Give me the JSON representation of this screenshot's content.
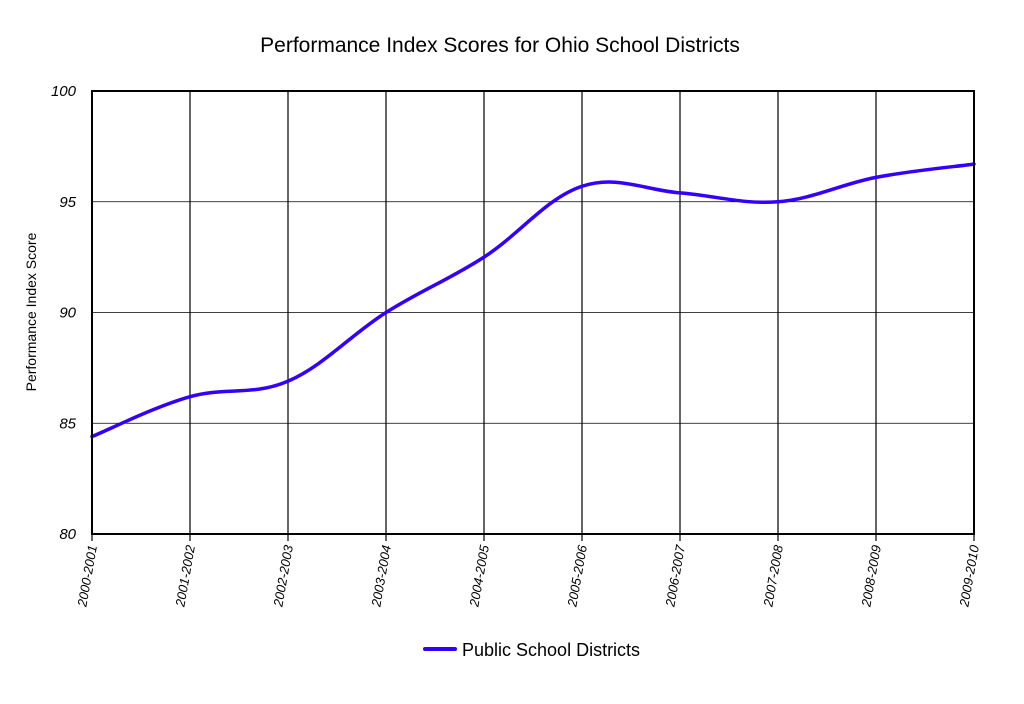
{
  "chart_data": {
    "type": "line",
    "title": "Performance Index Scores for Ohio School Districts",
    "xlabel": "",
    "ylabel": "Performance Index Score",
    "categories": [
      "2000-2001",
      "2001-2002",
      "2002-2003",
      "2003-2004",
      "2004-2005",
      "2005-2006",
      "2006-2007",
      "2007-2008",
      "2008-2009",
      "2009-2010"
    ],
    "series": [
      {
        "name": "Public School Districts",
        "color": "#3300ff",
        "values": [
          84.4,
          86.2,
          86.9,
          90.0,
          92.5,
          95.7,
          95.4,
          95.0,
          96.1,
          96.7
        ]
      }
    ],
    "ylim": [
      80,
      100
    ],
    "yticks": [
      "80",
      "85",
      "90",
      "95",
      "100"
    ],
    "grid": {
      "horizontal": true,
      "vertical": true
    },
    "smooth": true,
    "legend_position": "bottom"
  }
}
